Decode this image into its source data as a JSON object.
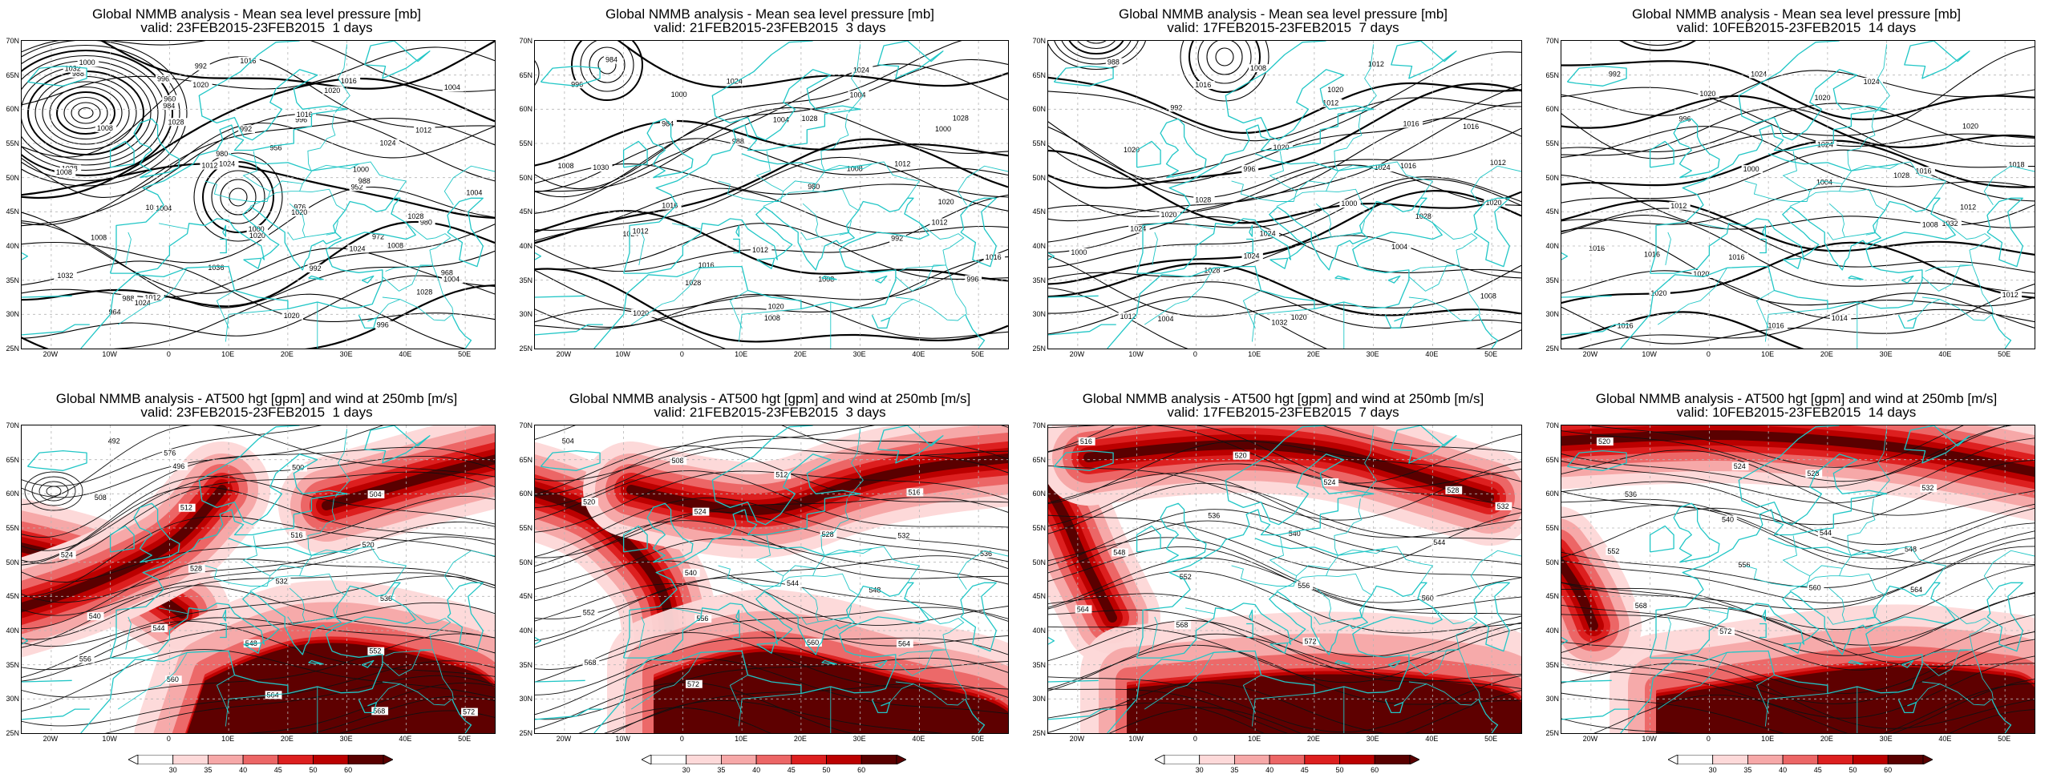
{
  "panels": [
    {
      "line1": "Global NMMB analysis - Mean sea level pressure [mb]",
      "line2": "valid: 23FEB2015-23FEB2015  1 days",
      "kind": "mslp",
      "variant": 0,
      "contour_labels": [
        "988",
        "984",
        "980",
        "976",
        "972",
        "968",
        "964",
        "960",
        "956",
        "952",
        "980",
        "984",
        "988",
        "992",
        "996",
        "1000",
        "1004",
        "1008",
        "1012",
        "1016",
        "1020",
        "1024",
        "1028",
        "1032",
        "1036",
        "1020",
        "1016",
        "1012",
        "1008",
        "1004",
        "1000",
        "992",
        "996",
        "1004",
        "1008",
        "1012",
        "1020",
        "1024",
        "1028",
        "1032",
        "1028",
        "1024",
        "1020",
        "1008",
        "1004",
        "1000",
        "996",
        "992",
        "988",
        "1028",
        "1032",
        "1024",
        "1020",
        "1016"
      ]
    },
    {
      "line1": "Global NMMB analysis - Mean sea level pressure [mb]",
      "line2": "valid: 21FEB2015-23FEB2015  3 days",
      "kind": "mslp",
      "variant": 1,
      "contour_labels": [
        "996",
        "984",
        "988",
        "980",
        "992",
        "996",
        "984",
        "1000",
        "1004",
        "1008",
        "1012",
        "1016",
        "1020",
        "1024",
        "1028",
        "1012",
        "1020",
        "1024",
        "1028",
        "1008",
        "1004",
        "1000",
        "1008",
        "1012",
        "1016",
        "1020",
        "1024",
        "1028",
        "1030",
        "1016",
        "1012",
        "1008"
      ]
    },
    {
      "line1": "Global NMMB analysis - Mean sea level pressure [mb]",
      "line2": "valid: 17FEB2015-23FEB2015  7 days",
      "kind": "mslp",
      "variant": 2,
      "contour_labels": [
        "988",
        "992",
        "996",
        "1000",
        "1004",
        "1008",
        "1012",
        "1016",
        "1020",
        "1024",
        "1028",
        "1000",
        "1004",
        "1008",
        "1012",
        "1016",
        "1020",
        "1024",
        "1028",
        "1032",
        "1020",
        "1016",
        "1012",
        "1020",
        "1024",
        "1020",
        "1012",
        "1016",
        "1020",
        "1028",
        "1024"
      ]
    },
    {
      "line1": "Global NMMB analysis - Mean sea level pressure [mb]",
      "line2": "valid: 10FEB2015-23FEB2015  14 days",
      "kind": "mslp",
      "variant": 3,
      "contour_labels": [
        "992",
        "996",
        "1000",
        "1004",
        "1008",
        "1012",
        "1016",
        "1020",
        "1024",
        "1028",
        "1032",
        "1016",
        "1020",
        "1024",
        "1020",
        "1016",
        "1012",
        "1016",
        "1020",
        "1016",
        "1024",
        "1020",
        "1018",
        "1012",
        "1016",
        "1014"
      ]
    },
    {
      "line1": "Global NMMB analysis - AT500 hgt [gpm] and wind at 250mb [m/s]",
      "line2": "valid: 23FEB2015-23FEB2015  1 days",
      "kind": "z500",
      "variant": 0,
      "contour_labels": [
        "492",
        "496",
        "500",
        "504",
        "508",
        "512",
        "516",
        "520",
        "524",
        "528",
        "532",
        "536",
        "540",
        "544",
        "548",
        "552",
        "556",
        "560",
        "564",
        "568",
        "572",
        "576"
      ]
    },
    {
      "line1": "Global NMMB analysis - AT500 hgt [gpm] and wind at 250mb [m/s]",
      "line2": "valid: 21FEB2015-23FEB2015  3 days",
      "kind": "z500",
      "variant": 1,
      "contour_labels": [
        "504",
        "508",
        "512",
        "516",
        "520",
        "524",
        "528",
        "532",
        "536",
        "540",
        "544",
        "548",
        "552",
        "556",
        "560",
        "564",
        "568",
        "572"
      ]
    },
    {
      "line1": "Global NMMB analysis - AT500 hgt [gpm] and wind at 250mb [m/s]",
      "line2": "valid: 17FEB2015-23FEB2015  7 days",
      "kind": "z500",
      "variant": 2,
      "contour_labels": [
        "516",
        "520",
        "524",
        "528",
        "532",
        "536",
        "540",
        "544",
        "548",
        "552",
        "556",
        "560",
        "564",
        "568",
        "572"
      ]
    },
    {
      "line1": "Global NMMB analysis - AT500 hgt [gpm] and wind at 250mb [m/s]",
      "line2": "valid: 10FEB2015-23FEB2015  14 days",
      "kind": "z500",
      "variant": 3,
      "contour_labels": [
        "520",
        "524",
        "528",
        "532",
        "536",
        "540",
        "544",
        "548",
        "552",
        "556",
        "560",
        "564",
        "568",
        "572"
      ]
    }
  ],
  "lat_ticks": [
    "70N",
    "65N",
    "60N",
    "55N",
    "50N",
    "45N",
    "40N",
    "35N",
    "30N",
    "25N"
  ],
  "lon_ticks": [
    "20W",
    "10W",
    "0",
    "10E",
    "20E",
    "30E",
    "40E",
    "50E"
  ],
  "colorbar_labels": [
    "30",
    "35",
    "40",
    "45",
    "50",
    "60"
  ],
  "colors": {
    "contour": "#000000",
    "coast": "#21c6c6",
    "grid": "#b5b5b5",
    "shade1": "#fdd9d9",
    "shade2": "#f6a8a8",
    "shade3": "#ec6666",
    "shade4": "#dd1f1f",
    "shade5": "#bb0000",
    "shade6": "#5a0000"
  }
}
